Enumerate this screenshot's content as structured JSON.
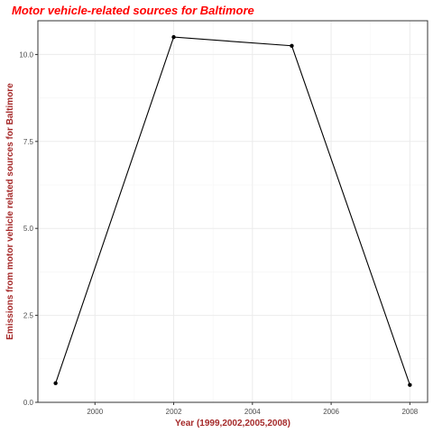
{
  "chart_data": {
    "type": "line",
    "title": "Motor vehicle-related sources for Baltimore",
    "xlabel": "Year (1999,2002,2005,2008)",
    "ylabel": "Emissions from motor vehicle related sources for Baltimore",
    "x": [
      1999,
      2002,
      2005,
      2008
    ],
    "series": [
      {
        "values": [
          0.55,
          10.5,
          10.25,
          0.5
        ]
      }
    ],
    "xlim": [
      1998.55,
      2008.45
    ],
    "ylim": [
      0,
      10.97
    ],
    "x_ticks": [
      2000,
      2002,
      2004,
      2006,
      2008
    ],
    "x_tick_labels": [
      "2000",
      "2002",
      "2004",
      "2006",
      "2008"
    ],
    "y_ticks": [
      0,
      2.5,
      5,
      7.5,
      10
    ],
    "y_tick_labels": [
      "0.0",
      "2.5",
      "5.0",
      "7.5",
      "10.0"
    ],
    "grid": true,
    "legend": "none",
    "colors": {
      "title": "#ff0000",
      "axis_title": "#a52a2a",
      "line": "#000000",
      "grid_major": "#ebebeb",
      "grid_minor": "#f5f5f5",
      "panel_border": "#333333"
    }
  }
}
